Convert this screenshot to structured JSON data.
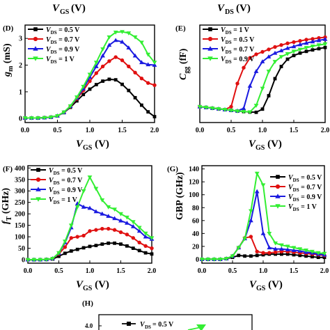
{
  "top_labels": {
    "left": "V",
    "left_sub": "GS",
    "left_unit": " (V)",
    "right": "V",
    "right_sub": "DS",
    "right_unit": " (V)"
  },
  "chart_data": [
    {
      "panel": "(D)",
      "type": "line",
      "ylabel": "g",
      "ylabel_sub": "m",
      "ylabel_unit": " (mS)",
      "xlabel": "V",
      "xlabel_sub": "GS",
      "xlabel_unit": " (V)",
      "xlim": [
        0,
        2
      ],
      "ylim": [
        -0.15,
        3.5
      ],
      "xticks": [
        "0.0",
        "0.5",
        "1.0",
        "1.5",
        "2.0"
      ],
      "xtick_values": [
        0,
        0.5,
        1,
        1.5,
        2
      ],
      "yticks": [
        "0",
        "1",
        "2",
        "3"
      ],
      "ytick_values": [
        0,
        1,
        2,
        3
      ],
      "legend_position": "top-left",
      "x": [
        0,
        0.1,
        0.2,
        0.3,
        0.4,
        0.5,
        0.6,
        0.7,
        0.8,
        0.9,
        1.0,
        1.1,
        1.2,
        1.3,
        1.4,
        1.5,
        1.6,
        1.7,
        1.8,
        1.9,
        2.0
      ],
      "series": [
        {
          "name": "= 0.5 V",
          "name_prefix": "V",
          "name_sub": "DS",
          "color": "#000000",
          "marker": "square",
          "values": [
            0.02,
            0.02,
            0.02,
            0.03,
            0.05,
            0.1,
            0.22,
            0.42,
            0.66,
            0.9,
            1.1,
            1.27,
            1.4,
            1.47,
            1.45,
            1.28,
            1.05,
            0.78,
            0.5,
            0.25,
            0.07
          ]
        },
        {
          "name": "= 0.7 V",
          "name_prefix": "V",
          "name_sub": "DS",
          "color": "#e01010",
          "marker": "circle",
          "values": [
            0.02,
            0.02,
            0.02,
            0.03,
            0.05,
            0.1,
            0.23,
            0.45,
            0.74,
            1.05,
            1.4,
            1.7,
            1.95,
            2.15,
            2.3,
            2.18,
            1.95,
            1.72,
            1.5,
            1.33,
            1.25
          ]
        },
        {
          "name": "= 0.9 V",
          "name_prefix": "V",
          "name_sub": "DS",
          "color": "#1a1ae0",
          "marker": "triangle",
          "values": [
            0.02,
            0.02,
            0.02,
            0.03,
            0.05,
            0.1,
            0.23,
            0.46,
            0.77,
            1.12,
            1.55,
            1.95,
            2.35,
            2.75,
            2.93,
            2.87,
            2.65,
            2.35,
            2.1,
            2.02,
            2.0
          ]
        },
        {
          "name": "= 1 V",
          "name_prefix": "V",
          "name_sub": "DS",
          "color": "#33ee33",
          "marker": "triangle-down",
          "values": [
            0.02,
            0.02,
            0.02,
            0.03,
            0.05,
            0.1,
            0.24,
            0.47,
            0.8,
            1.2,
            1.65,
            2.1,
            2.6,
            3.05,
            3.23,
            3.25,
            3.2,
            3.05,
            2.85,
            2.4,
            2.1
          ]
        }
      ]
    },
    {
      "panel": "(E)",
      "type": "line",
      "ylabel": "C",
      "ylabel_sub": "gg",
      "ylabel_unit": " (fF)",
      "xlabel": "V",
      "xlabel_sub": "GS",
      "xlabel_unit": " (V)",
      "xlim": [
        0,
        2
      ],
      "ylim": [
        0.3,
        4.3
      ],
      "xticks": [
        "0.0",
        "0.5",
        "1.0",
        "1.5",
        "2.0"
      ],
      "xtick_values": [
        0,
        0.5,
        1,
        1.5,
        2
      ],
      "yticks": [],
      "ytick_values": [],
      "legend_position": "top-left",
      "x": [
        0,
        0.1,
        0.2,
        0.3,
        0.4,
        0.5,
        0.6,
        0.7,
        0.8,
        0.9,
        1.0,
        1.1,
        1.2,
        1.3,
        1.4,
        1.5,
        1.6,
        1.7,
        1.8,
        1.9,
        2.0
      ],
      "series": [
        {
          "name": "= 1 V",
          "name_prefix": "V",
          "name_sub": "DS",
          "color": "#000000",
          "marker": "square",
          "values": [
            0.95,
            0.92,
            0.89,
            0.86,
            0.83,
            0.8,
            0.77,
            0.75,
            0.73,
            0.72,
            0.85,
            1.4,
            2.1,
            2.6,
            2.9,
            3.05,
            3.15,
            3.22,
            3.28,
            3.33,
            3.38
          ]
        },
        {
          "name": "= 0.5 V",
          "name_prefix": "V",
          "name_sub": "DS",
          "color": "#e01010",
          "marker": "circle",
          "values": [
            0.95,
            0.92,
            0.89,
            0.86,
            0.83,
            0.95,
            1.9,
            2.55,
            2.95,
            3.1,
            3.2,
            3.3,
            3.4,
            3.48,
            3.55,
            3.6,
            3.65,
            3.7,
            3.73,
            3.77,
            3.8
          ]
        },
        {
          "name": "= 0.7 V",
          "name_prefix": "V",
          "name_sub": "DS",
          "color": "#1a1ae0",
          "marker": "triangle",
          "values": [
            0.95,
            0.92,
            0.89,
            0.86,
            0.83,
            0.8,
            0.78,
            0.88,
            1.8,
            2.4,
            2.8,
            3.0,
            3.15,
            3.25,
            3.35,
            3.42,
            3.5,
            3.56,
            3.62,
            3.67,
            3.72
          ]
        },
        {
          "name": "= 0.9 V",
          "name_prefix": "V",
          "name_sub": "DS",
          "color": "#33ee33",
          "marker": "triangle-down",
          "values": [
            0.95,
            0.92,
            0.89,
            0.86,
            0.83,
            0.8,
            0.77,
            0.75,
            0.73,
            1.0,
            1.7,
            2.4,
            2.8,
            3.0,
            3.12,
            3.22,
            3.3,
            3.37,
            3.43,
            3.48,
            3.52
          ]
        }
      ]
    },
    {
      "panel": "(F)",
      "type": "line",
      "ylabel": "f",
      "ylabel_sub": "T",
      "ylabel_unit": " (GHz)",
      "xlabel": "V",
      "xlabel_sub": "GS",
      "xlabel_unit": " (V)",
      "xlim": [
        0,
        2
      ],
      "ylim": [
        -15,
        410
      ],
      "xticks": [
        "0.0",
        "0.5",
        "1.0",
        "1.5",
        "2.0"
      ],
      "xtick_values": [
        0,
        0.5,
        1,
        1.5,
        2
      ],
      "yticks": [
        "0",
        "50",
        "100",
        "150",
        "200",
        "250",
        "300",
        "350",
        "400"
      ],
      "ytick_values": [
        0,
        50,
        100,
        150,
        200,
        250,
        300,
        350,
        400
      ],
      "legend_position": "top-left",
      "x": [
        0,
        0.1,
        0.2,
        0.3,
        0.4,
        0.5,
        0.6,
        0.7,
        0.8,
        0.9,
        1.0,
        1.1,
        1.2,
        1.3,
        1.4,
        1.5,
        1.6,
        1.7,
        1.8,
        1.9,
        2.0
      ],
      "series": [
        {
          "name": "= 0.5 V",
          "name_prefix": "V",
          "name_sub": "DS",
          "color": "#000000",
          "marker": "square",
          "values": [
            0,
            0,
            0,
            1,
            3,
            15,
            28,
            38,
            45,
            52,
            58,
            62,
            68,
            72,
            72,
            68,
            60,
            50,
            40,
            30,
            25
          ]
        },
        {
          "name": "= 0.7 V",
          "name_prefix": "V",
          "name_sub": "DS",
          "color": "#e01010",
          "marker": "circle",
          "values": [
            0,
            0,
            0,
            1,
            5,
            25,
            55,
            95,
            100,
            105,
            125,
            130,
            135,
            135,
            130,
            120,
            110,
            95,
            75,
            60,
            50
          ]
        },
        {
          "name": "= 0.9 V",
          "name_prefix": "V",
          "name_sub": "DS",
          "color": "#1a1ae0",
          "marker": "triangle",
          "values": [
            0,
            0,
            0,
            1,
            5,
            28,
            75,
            140,
            245,
            230,
            225,
            210,
            200,
            190,
            180,
            170,
            160,
            145,
            125,
            100,
            90
          ]
        },
        {
          "name": "= 1 V",
          "name_prefix": "V",
          "name_sub": "DS",
          "color": "#33ee33",
          "marker": "triangle-down",
          "values": [
            0,
            0,
            0,
            1,
            5,
            30,
            80,
            150,
            230,
            300,
            360,
            310,
            260,
            230,
            220,
            200,
            185,
            165,
            140,
            115,
            95
          ]
        }
      ]
    },
    {
      "panel": "(G)",
      "type": "line",
      "ylabel": "GBP (GHz)",
      "ylabel_sub": "",
      "ylabel_unit": "",
      "xlabel": "V",
      "xlabel_sub": "GS",
      "xlabel_unit": " (V)",
      "xlim": [
        0,
        2
      ],
      "ylim": [
        -6,
        145
      ],
      "xticks": [
        "0.0",
        "0.5",
        "1.0",
        "1.5",
        "2.0"
      ],
      "xtick_values": [
        0,
        0.5,
        1,
        1.5,
        2
      ],
      "yticks": [
        "0",
        "20",
        "40",
        "60",
        "80",
        "100",
        "120",
        "140"
      ],
      "ytick_values": [
        0,
        20,
        40,
        60,
        80,
        100,
        120,
        140
      ],
      "legend_position": "top-right",
      "x": [
        0,
        0.1,
        0.2,
        0.3,
        0.4,
        0.5,
        0.6,
        0.7,
        0.8,
        0.9,
        1.0,
        1.1,
        1.2,
        1.3,
        1.4,
        1.5,
        1.6,
        1.7,
        1.8,
        1.9,
        2.0
      ],
      "series": [
        {
          "name": "= 0.5 V",
          "name_prefix": "V",
          "name_sub": "DS",
          "color": "#000000",
          "marker": "square",
          "values": [
            0,
            0,
            0,
            0,
            1,
            3,
            6,
            5,
            5,
            6,
            7,
            8,
            8,
            8,
            8,
            7,
            6,
            5,
            4,
            3,
            3
          ]
        },
        {
          "name": "= 0.7 V",
          "name_prefix": "V",
          "name_sub": "DS",
          "color": "#e01010",
          "marker": "circle",
          "values": [
            0,
            0,
            0,
            0,
            1,
            5,
            18,
            33,
            35,
            12,
            10,
            10,
            11,
            12,
            12,
            11,
            10,
            9,
            8,
            7,
            6
          ]
        },
        {
          "name": "= 0.9 V",
          "name_prefix": "V",
          "name_sub": "DS",
          "color": "#1a1ae0",
          "marker": "triangle",
          "values": [
            0,
            0,
            0,
            0,
            1,
            5,
            18,
            32,
            60,
            105,
            40,
            18,
            16,
            16,
            15,
            14,
            13,
            11,
            10,
            8,
            7
          ]
        },
        {
          "name": "= 1 V",
          "name_prefix": "V",
          "name_sub": "DS",
          "color": "#33ee33",
          "marker": "triangle-down",
          "values": [
            0,
            0,
            0,
            0,
            1,
            5,
            18,
            32,
            75,
            133,
            115,
            40,
            25,
            22,
            20,
            18,
            16,
            14,
            12,
            10,
            9
          ]
        }
      ]
    }
  ],
  "panel_h": {
    "panel": "(H)",
    "legend_prefix": "V",
    "legend_sub": "DS",
    "legend_rest": " = 0.5 V",
    "legend_color": "#000000",
    "visible_tick": "4.0"
  }
}
